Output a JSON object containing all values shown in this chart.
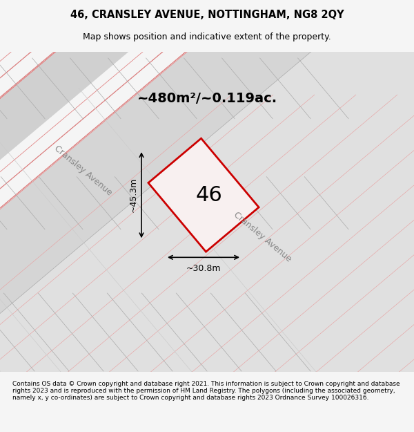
{
  "title_line1": "46, CRANSLEY AVENUE, NOTTINGHAM, NG8 2QY",
  "title_line2": "Map shows position and indicative extent of the property.",
  "area_text": "~480m²/~0.119ac.",
  "number_label": "46",
  "dim_width": "~30.8m",
  "dim_height": "~45.3m",
  "footer_text": "Contains OS data © Crown copyright and database right 2021. This information is subject to Crown copyright and database rights 2023 and is reproduced with the permission of HM Land Registry. The polygons (including the associated geometry, namely x, y co-ordinates) are subject to Crown copyright and database rights 2023 Ordnance Survey 100026316.",
  "bg_color": "#f0f0f0",
  "map_bg_color": "#e8e8e8",
  "road_color": "#ffffff",
  "building_color": "#d0d0d0",
  "highlight_color": "#cc0000",
  "street_label1": "Cransley Avenue",
  "street_label2": "Cransley Avenue"
}
